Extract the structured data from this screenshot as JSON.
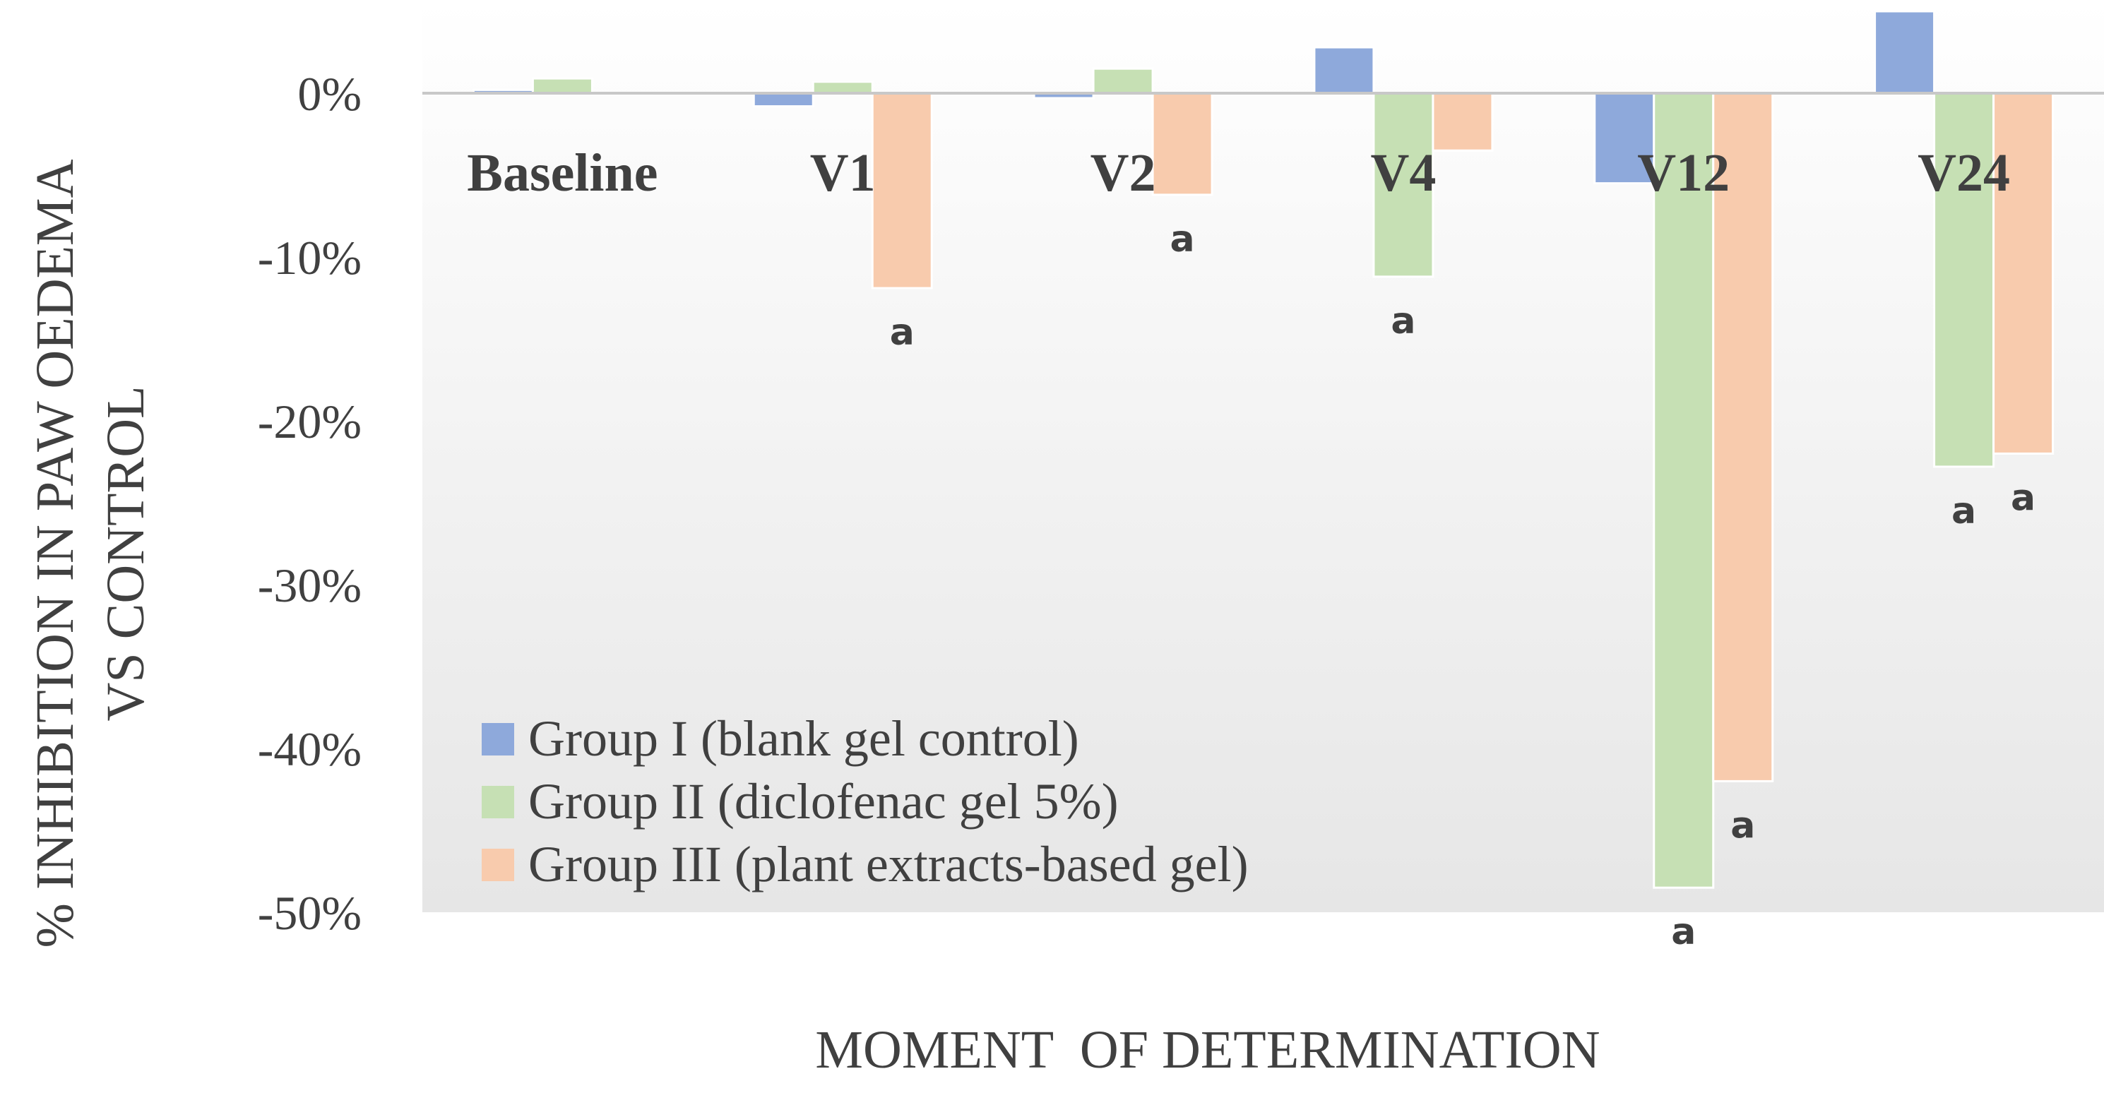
{
  "chart_data": {
    "type": "bar",
    "title": "",
    "xlabel": "MOMENT  OF DETERMINATION",
    "ylabel_lines": [
      "% INHIBITION IN PAW OEDEMA",
      "VS CONTROL"
    ],
    "categories": [
      "Baseline",
      "V1",
      "V2",
      "V4",
      "V12",
      "V24"
    ],
    "ylim": [
      -0.5,
      0.05
    ],
    "yticks": [
      0,
      -0.1,
      -0.2,
      -0.3,
      -0.4,
      -0.5
    ],
    "ytick_labels": [
      "0%",
      "-10%",
      "-20%",
      "-30%",
      "-40%",
      "-50%"
    ],
    "grid": false,
    "legend_position": "bottom-left (inside plot)",
    "series": [
      {
        "name": "Group I (blank gel control)",
        "color": "#8EA9DB",
        "values": [
          0.002,
          -0.008,
          -0.003,
          0.028,
          -0.055,
          0.05
        ],
        "annotations": [
          "",
          "",
          "",
          "",
          "",
          ""
        ]
      },
      {
        "name": "Group II (diclofenac gel 5%)",
        "color": "#C6E0B4",
        "values": [
          0.009,
          0.007,
          0.015,
          -0.112,
          -0.485,
          -0.228
        ],
        "annotations": [
          "",
          "",
          "",
          "a",
          "a",
          "a"
        ]
      },
      {
        "name": "Group III (plant extracts-based gel)",
        "color": "#F8CBAD",
        "values": [
          0.0,
          -0.119,
          -0.062,
          -0.035,
          -0.42,
          -0.22
        ],
        "annotations": [
          "",
          "a",
          "a",
          "",
          "a",
          "a"
        ]
      }
    ]
  }
}
